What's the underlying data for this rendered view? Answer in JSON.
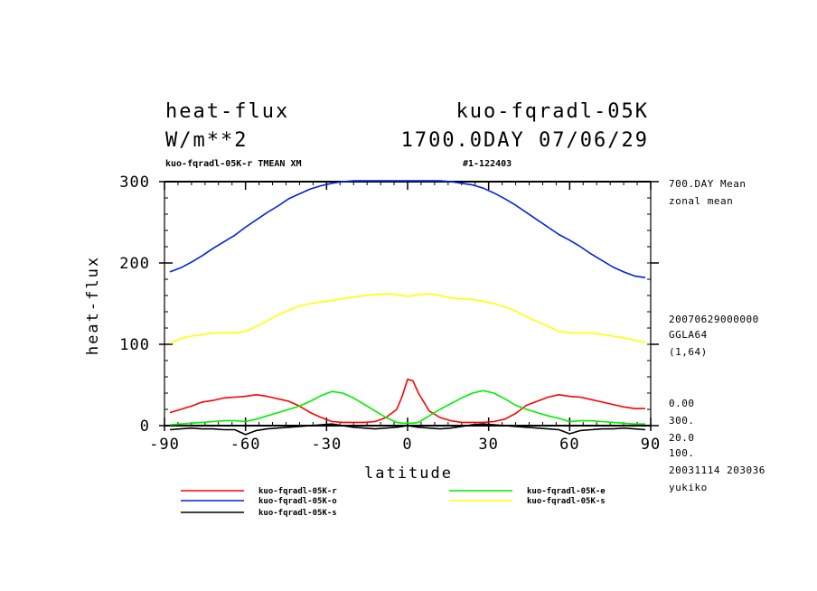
{
  "header": {
    "title_left": "heat-flux",
    "title_right": "kuo-fqradl-05K",
    "units": "W/m**2",
    "time_label": "1700.0DAY 07/06/29",
    "sub_left": "kuo-fqradl-05K-r TMEAN XM",
    "sub_right": "#1-122403"
  },
  "side_info": {
    "line1": "700.DAY Mean",
    "line2": "zonal mean",
    "line3": "20070629000000",
    "line4": "GGLA64",
    "line5": "(1,64)",
    "line6": "0.00",
    "line7": "300.",
    "line8": "20.0",
    "line9": "100.",
    "line10": "20031114 203036",
    "line11": "yukiko"
  },
  "chart_data": {
    "type": "line",
    "title": "heat-flux",
    "xlabel": "latitude",
    "ylabel": "heat-flux",
    "xlim": [
      -90,
      90
    ],
    "ylim": [
      0,
      300
    ],
    "x_ticks": [
      -90,
      -60,
      -30,
      0,
      30,
      60,
      90
    ],
    "y_ticks": [
      0,
      100,
      200,
      300
    ],
    "x_tick_labels": [
      "-90",
      "-60",
      "-30",
      "0",
      "30",
      "60",
      "90"
    ],
    "y_tick_labels": [
      "0",
      "100",
      "200",
      "300"
    ],
    "x": [
      -88,
      -84,
      -80,
      -76,
      -72,
      -68,
      -64,
      -60,
      -56,
      -52,
      -48,
      -44,
      -40,
      -36,
      -32,
      -28,
      -24,
      -20,
      -16,
      -12,
      -8,
      -4,
      -2,
      0,
      2,
      4,
      8,
      12,
      16,
      20,
      24,
      28,
      32,
      36,
      40,
      44,
      48,
      52,
      56,
      60,
      64,
      68,
      72,
      76,
      80,
      84,
      88
    ],
    "series": [
      {
        "name": "kuo-fqradl-05K-r",
        "color": "#ff0000",
        "values": [
          16,
          20,
          24,
          29,
          31,
          34,
          35,
          36,
          38,
          36,
          33,
          30,
          24,
          16,
          10,
          5,
          4,
          4,
          4,
          5,
          10,
          20,
          36,
          57,
          55,
          40,
          18,
          10,
          6,
          4,
          4,
          4,
          5,
          8,
          15,
          25,
          30,
          35,
          38,
          36,
          35,
          32,
          29,
          26,
          23,
          21,
          21
        ]
      },
      {
        "name": "kuo-fqradl-05K-e",
        "color": "#00ee00",
        "values": [
          1,
          2,
          3,
          4,
          5,
          6,
          6,
          5,
          8,
          12,
          16,
          20,
          24,
          30,
          37,
          42,
          40,
          34,
          26,
          18,
          10,
          4,
          3,
          3,
          3,
          4,
          12,
          20,
          27,
          34,
          40,
          43,
          40,
          33,
          25,
          20,
          16,
          12,
          9,
          5,
          6,
          6,
          5,
          4,
          3,
          2,
          2
        ]
      },
      {
        "name": "kuo-fqradl-05K-o",
        "color": "#0022dd",
        "values": [
          189,
          194,
          201,
          209,
          218,
          226,
          234,
          244,
          253,
          262,
          270,
          279,
          285,
          291,
          295,
          298,
          300,
          301,
          301,
          301,
          301,
          301,
          301,
          301,
          301,
          301,
          301,
          301,
          300,
          298,
          296,
          292,
          286,
          279,
          271,
          262,
          253,
          244,
          235,
          228,
          220,
          211,
          203,
          195,
          189,
          184,
          182
        ]
      },
      {
        "name": "kuo-fqradl-05K-s",
        "color": "#ffff00",
        "values": [
          101,
          107,
          110,
          112,
          114,
          114,
          114,
          116,
          122,
          129,
          136,
          142,
          147,
          150,
          152,
          154,
          156,
          158,
          160,
          161,
          162,
          161,
          160,
          159,
          160,
          161,
          162,
          160,
          157,
          156,
          155,
          153,
          150,
          146,
          141,
          134,
          128,
          122,
          116,
          114,
          114,
          114,
          112,
          110,
          108,
          105,
          102
        ]
      },
      {
        "name": "kuo-fqradl-05K-s",
        "color": "#000000",
        "values": [
          -5,
          -4,
          -3,
          -4,
          -4,
          -5,
          -5,
          -11,
          -6,
          -4,
          -3,
          -2,
          -1,
          0,
          1,
          2,
          0,
          -2,
          -3,
          -4,
          -3,
          -2,
          -1,
          0,
          -1,
          -2,
          -3,
          -4,
          -3,
          -1,
          1,
          2,
          1,
          0,
          -1,
          -2,
          -3,
          -4,
          -5,
          -10,
          -6,
          -5,
          -4,
          -4,
          -3,
          -4,
          -5
        ]
      }
    ],
    "legend": [
      "kuo-fqradl-05K-r",
      "kuo-fqradl-05K-e",
      "kuo-fqradl-05K-o",
      "kuo-fqradl-05K-s",
      "kuo-fqradl-05K-s"
    ]
  }
}
